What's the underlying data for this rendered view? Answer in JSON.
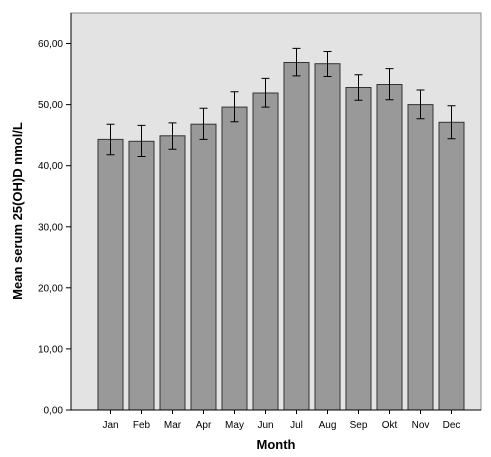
{
  "chart_data": {
    "type": "bar",
    "title": "",
    "xlabel": "Month",
    "ylabel": "Mean serum 25(OH)D nmol/L",
    "categories": [
      "Jan",
      "Feb",
      "Mar",
      "Apr",
      "May",
      "Jun",
      "Jul",
      "Aug",
      "Sep",
      "Okt",
      "Nov",
      "Dec"
    ],
    "values": [
      44.3,
      44.0,
      44.9,
      46.8,
      49.6,
      51.9,
      56.9,
      56.7,
      52.8,
      53.3,
      50.0,
      47.1
    ],
    "error_bars": [
      [
        41.8,
        46.8
      ],
      [
        41.5,
        46.6
      ],
      [
        42.7,
        47.0
      ],
      [
        44.3,
        49.4
      ],
      [
        47.2,
        52.1
      ],
      [
        49.6,
        54.3
      ],
      [
        54.7,
        59.2
      ],
      [
        54.6,
        58.7
      ],
      [
        50.7,
        54.9
      ],
      [
        50.8,
        55.9
      ],
      [
        47.7,
        52.4
      ],
      [
        44.4,
        49.8
      ]
    ],
    "ylim": [
      0,
      65
    ],
    "yticks": [
      "0,00",
      "10,00",
      "20,00",
      "30,00",
      "40,00",
      "50,00",
      "60,00"
    ],
    "ytick_values": [
      0,
      10,
      20,
      30,
      40,
      50,
      60
    ],
    "grid": false,
    "colors": {
      "bar_fill": "#999999",
      "bar_stroke": "#333333",
      "plot_background": "#e3e3e3",
      "error_bar": "#000000"
    }
  }
}
